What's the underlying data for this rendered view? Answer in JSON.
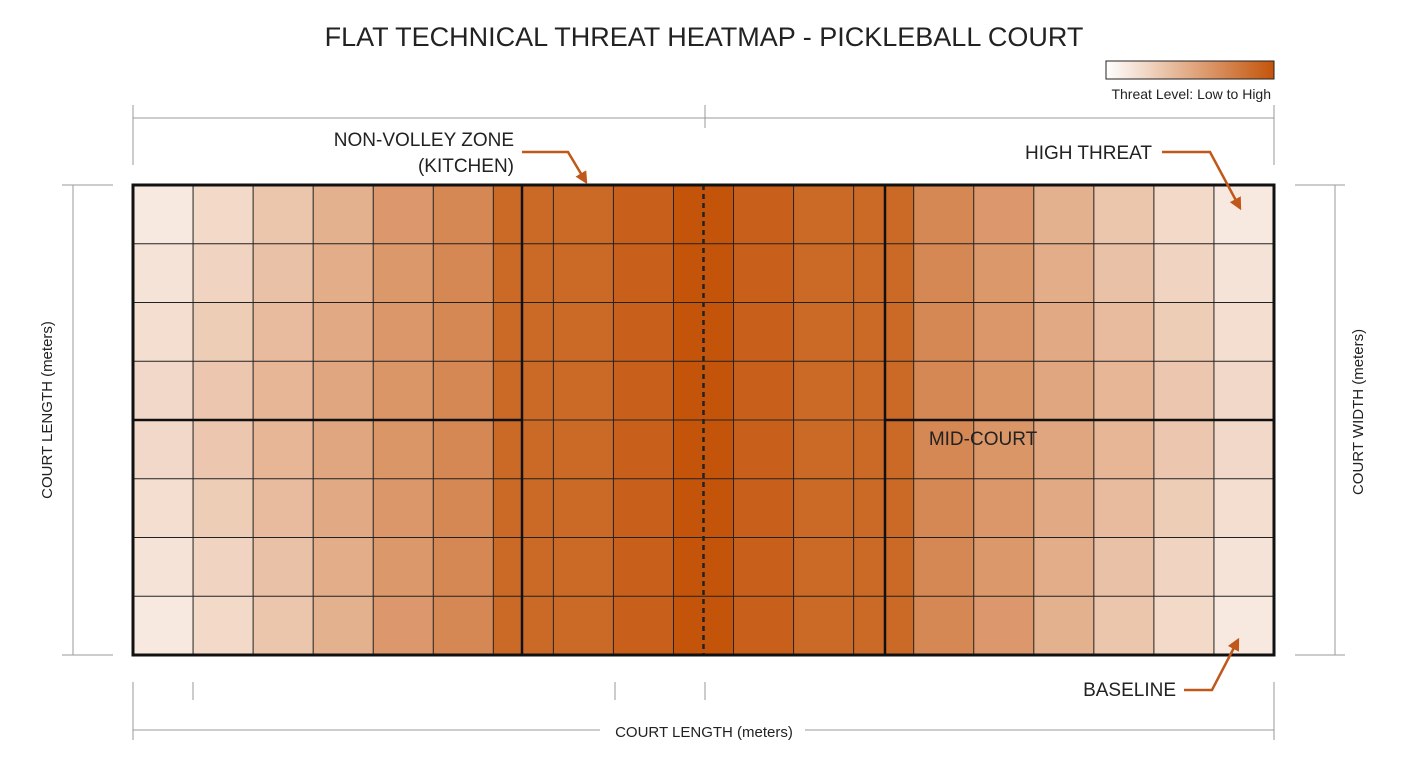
{
  "header": {
    "title": "FLAT TECHNICAL THREAT HEATMAP - PICKLEBALL COURT"
  },
  "legend": {
    "label": "Threat Level: Low to High"
  },
  "annotations": {
    "kitchen": [
      "NON-VOLLEY ZONE",
      "(KITCHEN)"
    ],
    "high_threat": "HIGH THREAT",
    "mid_court": "MID-COURT",
    "baseline": "BASELINE"
  },
  "axes": {
    "bottom": "COURT LENGTH (meters)",
    "left": "COURT LENGTH (meters)",
    "right": "COURT WIDTH (meters)"
  }
}
